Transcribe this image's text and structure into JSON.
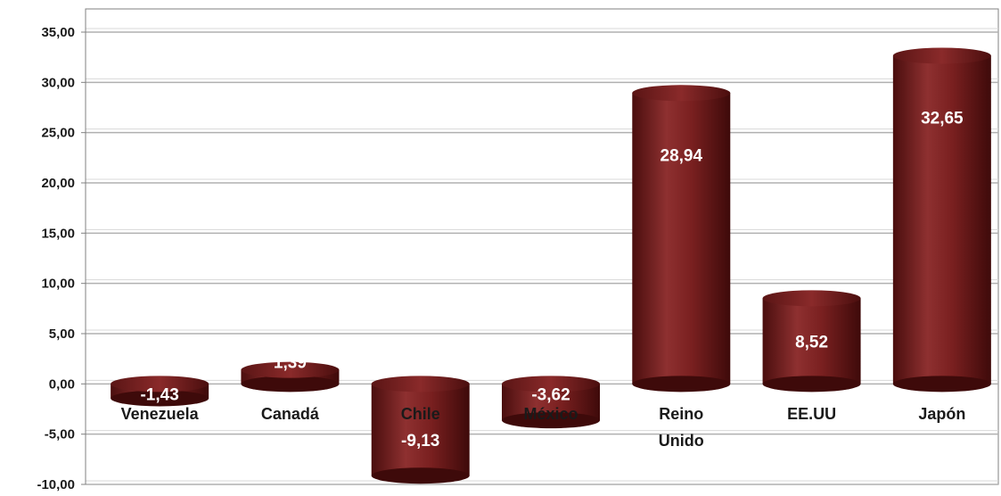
{
  "chart_data": {
    "type": "bar",
    "style": "3d-cylinder",
    "categories": [
      [
        "Venezuela"
      ],
      [
        "Canadá"
      ],
      [
        "Chile"
      ],
      [
        "México"
      ],
      [
        "Reino",
        "Unido"
      ],
      [
        "EE.UU"
      ],
      [
        "Japón"
      ]
    ],
    "values": [
      -1.43,
      1.39,
      -9.13,
      -3.62,
      28.94,
      8.52,
      32.65
    ],
    "value_labels": [
      "-1,43",
      "1,39",
      "-9,13",
      "-3,62",
      "28,94",
      "8,52",
      "32,65"
    ],
    "ylim": [
      -10,
      35
    ],
    "yticks": [
      -10,
      -5,
      0,
      5,
      10,
      15,
      20,
      25,
      30,
      35
    ],
    "ytick_labels": [
      "-10,00",
      "-5,00",
      "0,00",
      "5,00",
      "10,00",
      "15,00",
      "20,00",
      "25,00",
      "30,00",
      "35,00"
    ],
    "grid": true,
    "legend": false,
    "colors": {
      "bar_dark": "#4a0e0e",
      "bar_mid": "#7a2020",
      "bar_light": "#8e3030",
      "grid": "#b0b0b0",
      "axis": "#808080"
    }
  }
}
